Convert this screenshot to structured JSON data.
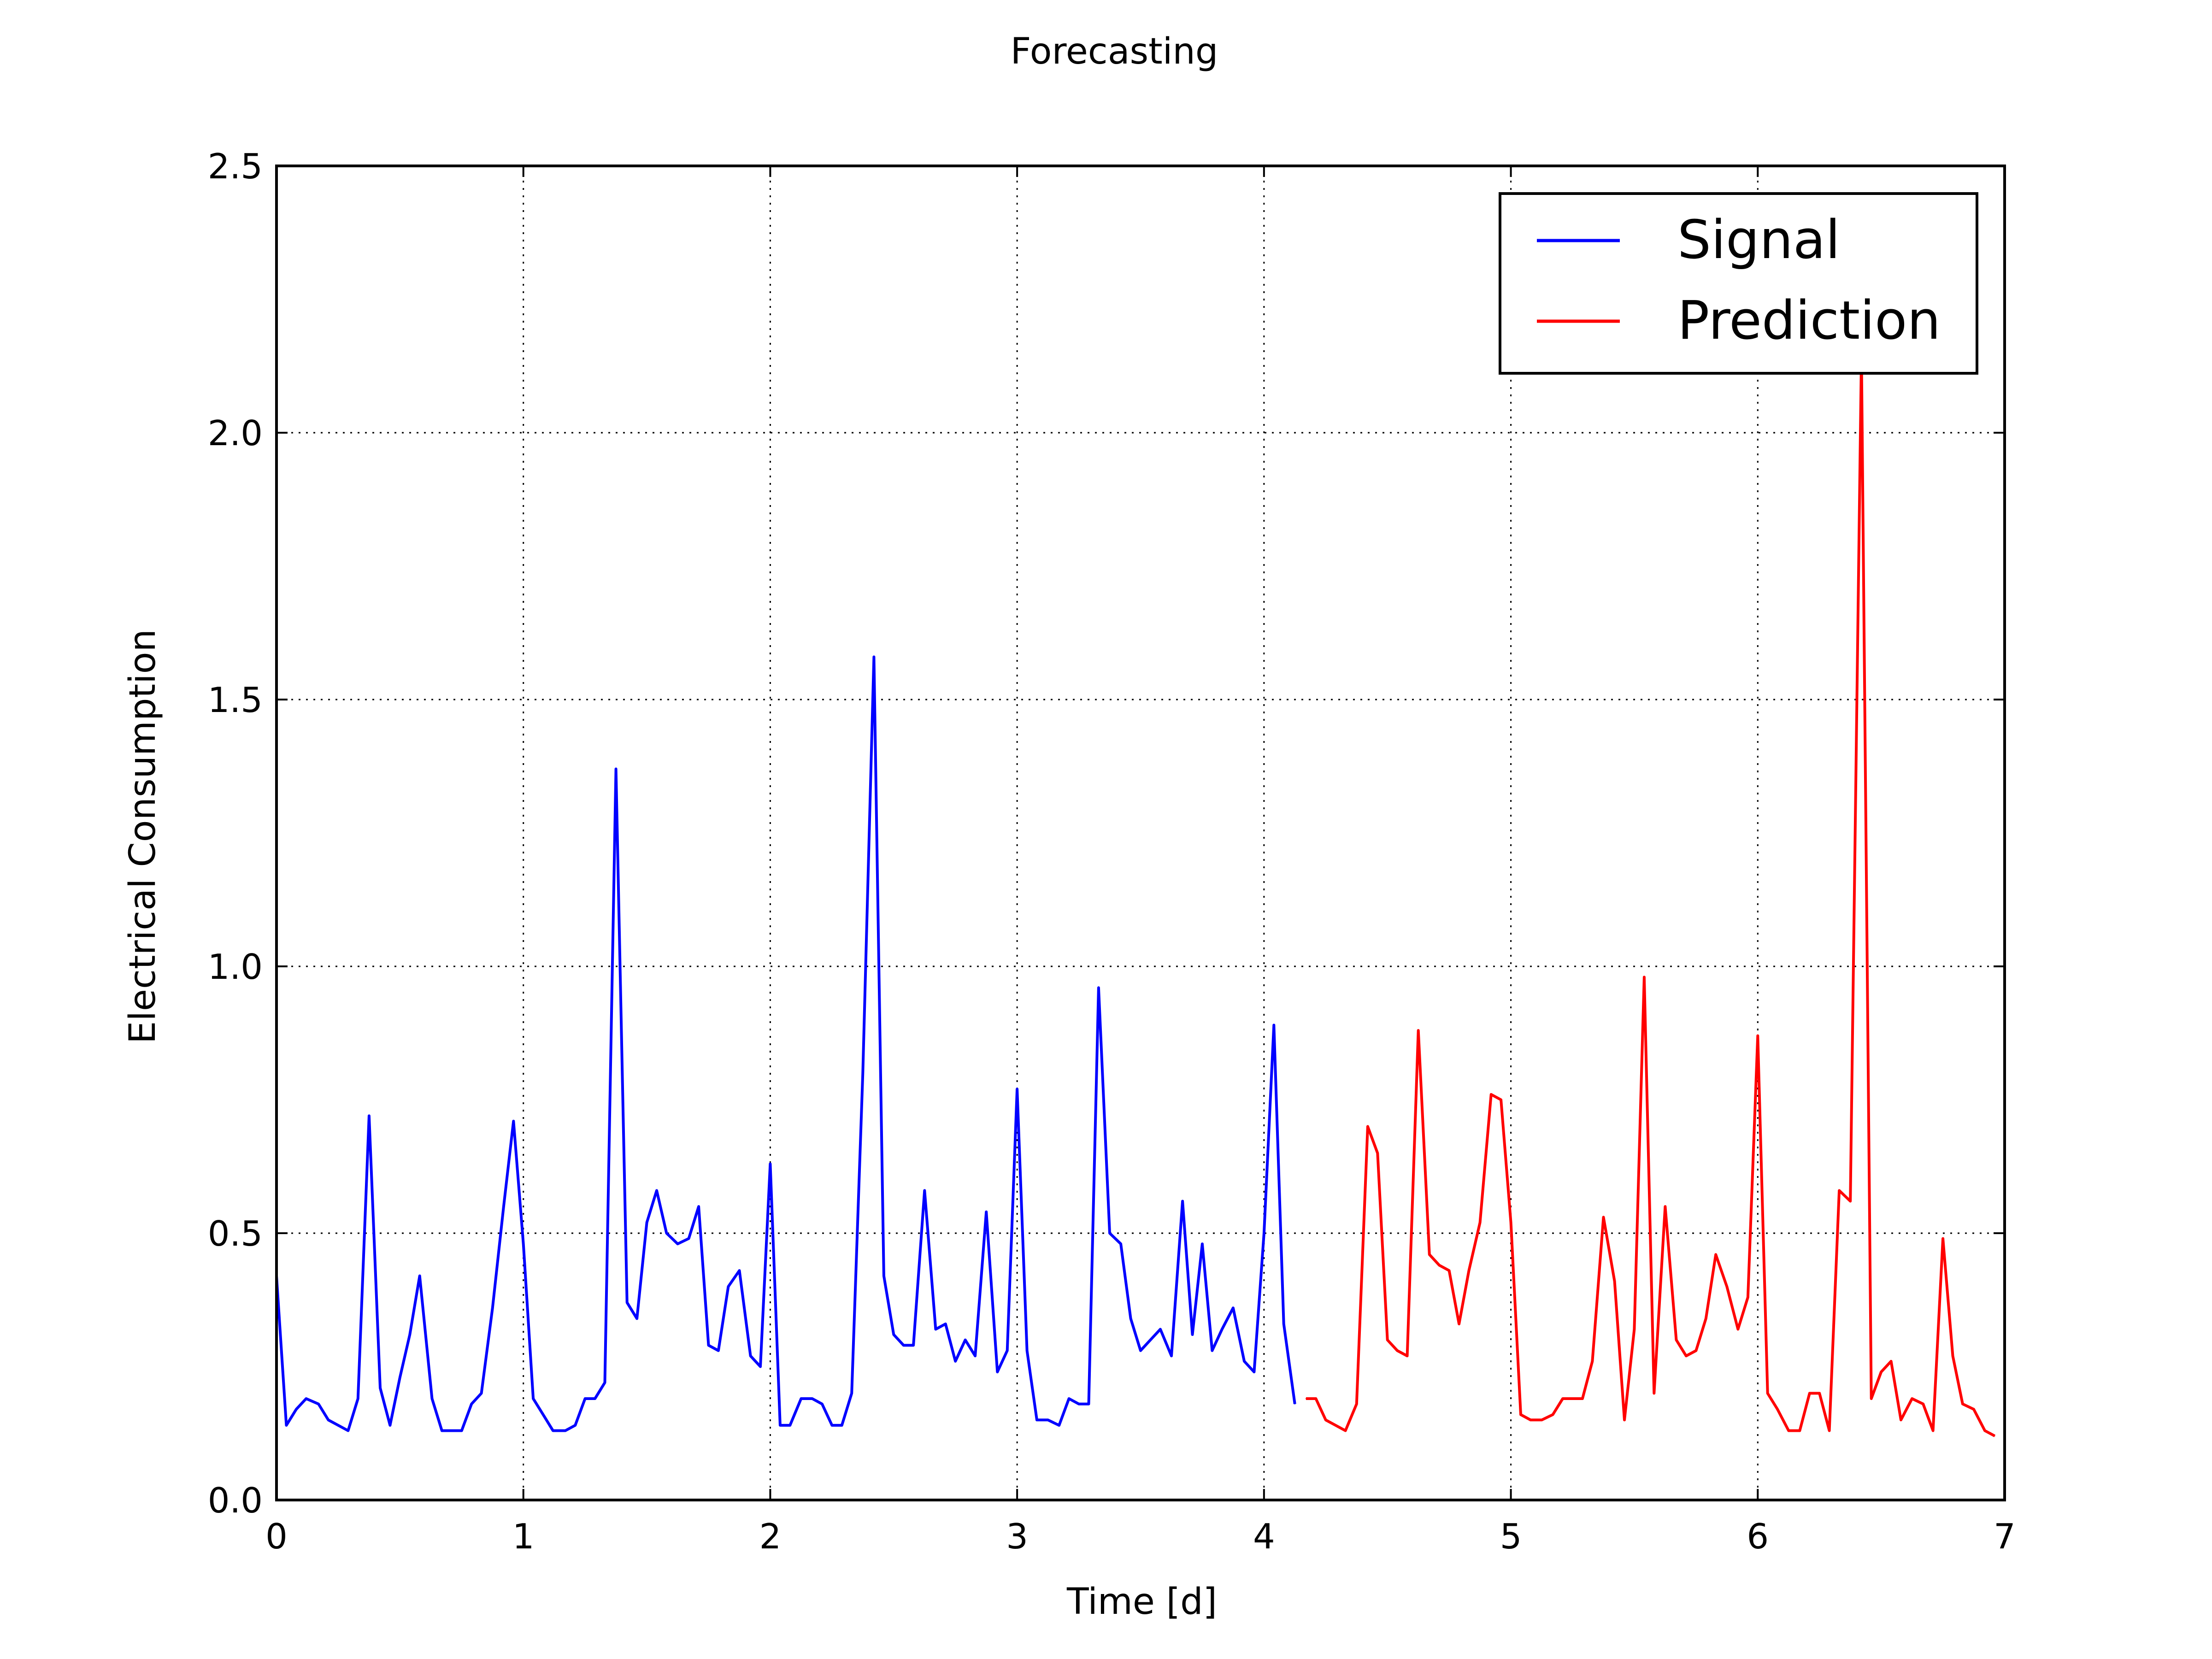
{
  "chart_data": {
    "type": "line",
    "title": "Forecasting",
    "xlabel": "Time [d]",
    "ylabel": "Electrical Consumption",
    "xlim": [
      0,
      7
    ],
    "ylim": [
      0,
      2.5
    ],
    "xticks": [
      "0",
      "1",
      "2",
      "3",
      "4",
      "5",
      "6",
      "7"
    ],
    "yticks": [
      "0.0",
      "0.5",
      "1.0",
      "1.5",
      "2.0",
      "2.5"
    ],
    "grid": true,
    "legend_position": "top-right",
    "series": [
      {
        "name": "Signal",
        "color": "#0000ff",
        "points": [
          [
            0.0,
            0.42
          ],
          [
            0.04,
            0.14
          ],
          [
            0.08,
            0.17
          ],
          [
            0.12,
            0.19
          ],
          [
            0.17,
            0.18
          ],
          [
            0.21,
            0.15
          ],
          [
            0.25,
            0.14
          ],
          [
            0.29,
            0.13
          ],
          [
            0.33,
            0.19
          ],
          [
            0.375,
            0.72
          ],
          [
            0.42,
            0.21
          ],
          [
            0.46,
            0.14
          ],
          [
            0.5,
            0.23
          ],
          [
            0.54,
            0.31
          ],
          [
            0.58,
            0.42
          ],
          [
            0.63,
            0.19
          ],
          [
            0.67,
            0.13
          ],
          [
            0.71,
            0.13
          ],
          [
            0.75,
            0.13
          ],
          [
            0.79,
            0.18
          ],
          [
            0.83,
            0.2
          ],
          [
            0.875,
            0.36
          ],
          [
            0.92,
            0.55
          ],
          [
            0.96,
            0.71
          ],
          [
            1.0,
            0.48
          ],
          [
            1.04,
            0.19
          ],
          [
            1.08,
            0.16
          ],
          [
            1.12,
            0.13
          ],
          [
            1.17,
            0.13
          ],
          [
            1.21,
            0.14
          ],
          [
            1.25,
            0.19
          ],
          [
            1.29,
            0.19
          ],
          [
            1.33,
            0.22
          ],
          [
            1.375,
            1.37
          ],
          [
            1.42,
            0.37
          ],
          [
            1.46,
            0.34
          ],
          [
            1.5,
            0.52
          ],
          [
            1.54,
            0.58
          ],
          [
            1.58,
            0.5
          ],
          [
            1.625,
            0.48
          ],
          [
            1.67,
            0.49
          ],
          [
            1.71,
            0.55
          ],
          [
            1.75,
            0.29
          ],
          [
            1.79,
            0.28
          ],
          [
            1.83,
            0.4
          ],
          [
            1.875,
            0.43
          ],
          [
            1.92,
            0.27
          ],
          [
            1.96,
            0.25
          ],
          [
            2.0,
            0.63
          ],
          [
            2.04,
            0.14
          ],
          [
            2.08,
            0.14
          ],
          [
            2.125,
            0.19
          ],
          [
            2.17,
            0.19
          ],
          [
            2.21,
            0.18
          ],
          [
            2.25,
            0.14
          ],
          [
            2.29,
            0.14
          ],
          [
            2.33,
            0.2
          ],
          [
            2.375,
            0.8
          ],
          [
            2.42,
            1.58
          ],
          [
            2.46,
            0.42
          ],
          [
            2.5,
            0.31
          ],
          [
            2.54,
            0.29
          ],
          [
            2.58,
            0.29
          ],
          [
            2.625,
            0.58
          ],
          [
            2.67,
            0.32
          ],
          [
            2.71,
            0.33
          ],
          [
            2.75,
            0.26
          ],
          [
            2.79,
            0.3
          ],
          [
            2.83,
            0.27
          ],
          [
            2.875,
            0.54
          ],
          [
            2.92,
            0.24
          ],
          [
            2.96,
            0.28
          ],
          [
            3.0,
            0.77
          ],
          [
            3.04,
            0.28
          ],
          [
            3.08,
            0.15
          ],
          [
            3.125,
            0.15
          ],
          [
            3.17,
            0.14
          ],
          [
            3.21,
            0.19
          ],
          [
            3.25,
            0.18
          ],
          [
            3.29,
            0.18
          ],
          [
            3.33,
            0.96
          ],
          [
            3.375,
            0.5
          ],
          [
            3.42,
            0.48
          ],
          [
            3.46,
            0.34
          ],
          [
            3.5,
            0.28
          ],
          [
            3.54,
            0.3
          ],
          [
            3.58,
            0.32
          ],
          [
            3.625,
            0.27
          ],
          [
            3.67,
            0.56
          ],
          [
            3.71,
            0.31
          ],
          [
            3.75,
            0.48
          ],
          [
            3.79,
            0.28
          ],
          [
            3.83,
            0.32
          ],
          [
            3.875,
            0.36
          ],
          [
            3.92,
            0.26
          ],
          [
            3.96,
            0.24
          ],
          [
            4.0,
            0.5
          ],
          [
            4.04,
            0.89
          ],
          [
            4.08,
            0.33
          ],
          [
            4.125,
            0.18
          ]
        ]
      },
      {
        "name": "Prediction",
        "color": "#ff0000",
        "points": [
          [
            4.17,
            0.19
          ],
          [
            4.21,
            0.19
          ],
          [
            4.25,
            0.15
          ],
          [
            4.29,
            0.14
          ],
          [
            4.33,
            0.13
          ],
          [
            4.375,
            0.18
          ],
          [
            4.42,
            0.7
          ],
          [
            4.46,
            0.65
          ],
          [
            4.5,
            0.3
          ],
          [
            4.54,
            0.28
          ],
          [
            4.58,
            0.27
          ],
          [
            4.625,
            0.88
          ],
          [
            4.67,
            0.46
          ],
          [
            4.71,
            0.44
          ],
          [
            4.75,
            0.43
          ],
          [
            4.79,
            0.33
          ],
          [
            4.83,
            0.43
          ],
          [
            4.875,
            0.52
          ],
          [
            4.92,
            0.76
          ],
          [
            4.96,
            0.75
          ],
          [
            5.0,
            0.52
          ],
          [
            5.04,
            0.16
          ],
          [
            5.08,
            0.15
          ],
          [
            5.125,
            0.15
          ],
          [
            5.17,
            0.16
          ],
          [
            5.21,
            0.19
          ],
          [
            5.25,
            0.19
          ],
          [
            5.29,
            0.19
          ],
          [
            5.33,
            0.26
          ],
          [
            5.375,
            0.53
          ],
          [
            5.42,
            0.41
          ],
          [
            5.46,
            0.15
          ],
          [
            5.5,
            0.32
          ],
          [
            5.54,
            0.98
          ],
          [
            5.58,
            0.2
          ],
          [
            5.625,
            0.55
          ],
          [
            5.67,
            0.3
          ],
          [
            5.71,
            0.27
          ],
          [
            5.75,
            0.28
          ],
          [
            5.79,
            0.34
          ],
          [
            5.83,
            0.46
          ],
          [
            5.875,
            0.4
          ],
          [
            5.92,
            0.32
          ],
          [
            5.96,
            0.38
          ],
          [
            6.0,
            0.87
          ],
          [
            6.04,
            0.2
          ],
          [
            6.08,
            0.17
          ],
          [
            6.125,
            0.13
          ],
          [
            6.17,
            0.13
          ],
          [
            6.21,
            0.2
          ],
          [
            6.25,
            0.2
          ],
          [
            6.29,
            0.13
          ],
          [
            6.33,
            0.58
          ],
          [
            6.375,
            0.56
          ],
          [
            6.42,
            2.15
          ],
          [
            6.46,
            0.19
          ],
          [
            6.5,
            0.24
          ],
          [
            6.54,
            0.26
          ],
          [
            6.58,
            0.15
          ],
          [
            6.625,
            0.19
          ],
          [
            6.67,
            0.18
          ],
          [
            6.71,
            0.13
          ],
          [
            6.75,
            0.49
          ],
          [
            6.79,
            0.27
          ],
          [
            6.83,
            0.18
          ],
          [
            6.875,
            0.17
          ],
          [
            6.92,
            0.13
          ],
          [
            6.96,
            0.12
          ]
        ]
      }
    ]
  }
}
